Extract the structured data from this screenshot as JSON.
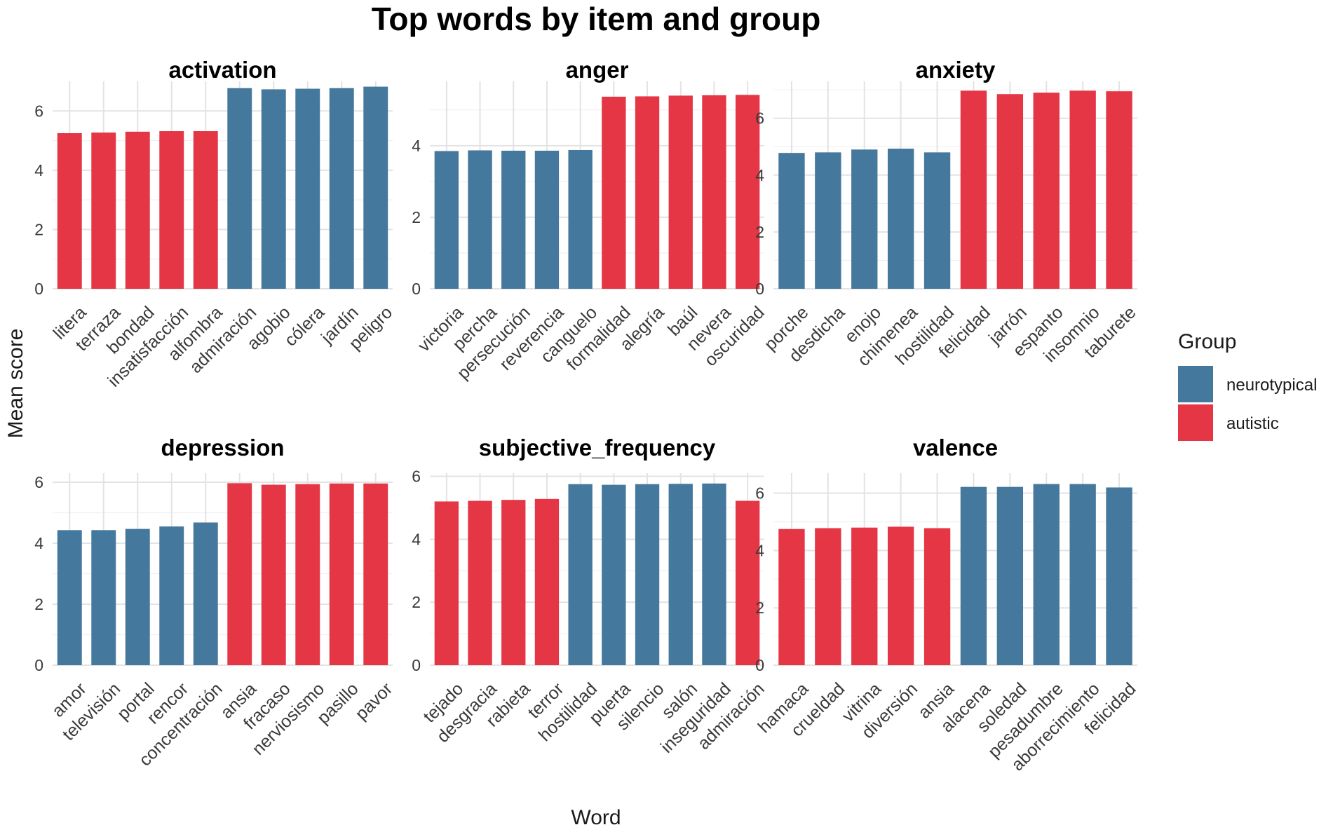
{
  "title": "Top words by item and group",
  "xlabel": "Word",
  "ylabel": "Mean score",
  "legend": {
    "title": "Group",
    "placement": "right",
    "entries": [
      {
        "label": "neurotypical",
        "color": "#44789D"
      },
      {
        "label": "autistic",
        "color": "#E43645"
      }
    ]
  },
  "colors": {
    "neurotypical": "#44789D",
    "autistic": "#E43645"
  },
  "chart_data": [
    {
      "type": "bar",
      "title": "activation",
      "ylim": [
        0,
        7
      ],
      "yticks": [
        0,
        2,
        4,
        6
      ],
      "categories": [
        "litera",
        "terraza",
        "bondad",
        "insatisfacción",
        "alfombra",
        "admiración",
        "agobio",
        "cólera",
        "jardín",
        "peligro"
      ],
      "values": [
        5.25,
        5.27,
        5.3,
        5.32,
        5.32,
        6.77,
        6.73,
        6.75,
        6.77,
        6.82
      ],
      "groups": [
        "autistic",
        "autistic",
        "autistic",
        "autistic",
        "autistic",
        "neurotypical",
        "neurotypical",
        "neurotypical",
        "neurotypical",
        "neurotypical"
      ],
      "grid": true
    },
    {
      "type": "bar",
      "title": "anger",
      "ylim": [
        0,
        5.8
      ],
      "yticks": [
        0,
        2,
        4
      ],
      "categories": [
        "victoria",
        "percha",
        "persecución",
        "reverencia",
        "canguelo",
        "formalidad",
        "alegría",
        "baúl",
        "nevera",
        "oscuridad"
      ],
      "values": [
        3.85,
        3.87,
        3.86,
        3.86,
        3.88,
        5.37,
        5.38,
        5.4,
        5.41,
        5.42
      ],
      "groups": [
        "neurotypical",
        "neurotypical",
        "neurotypical",
        "neurotypical",
        "neurotypical",
        "autistic",
        "autistic",
        "autistic",
        "autistic",
        "autistic"
      ],
      "grid": true
    },
    {
      "type": "bar",
      "title": "anxiety",
      "ylim": [
        0,
        7.3
      ],
      "yticks": [
        0,
        2,
        4,
        6
      ],
      "categories": [
        "porche",
        "desdicha",
        "enojo",
        "chimenea",
        "hostilidad",
        "felicidad",
        "jarrón",
        "espanto",
        "insomnio",
        "taburete"
      ],
      "values": [
        4.78,
        4.8,
        4.9,
        4.93,
        4.8,
        6.97,
        6.85,
        6.9,
        6.97,
        6.95
      ],
      "groups": [
        "neurotypical",
        "neurotypical",
        "neurotypical",
        "neurotypical",
        "neurotypical",
        "autistic",
        "autistic",
        "autistic",
        "autistic",
        "autistic"
      ],
      "grid": true
    },
    {
      "type": "bar",
      "title": "depression",
      "ylim": [
        0,
        6.3
      ],
      "yticks": [
        0,
        2,
        4,
        6
      ],
      "categories": [
        "amor",
        "televisión",
        "portal",
        "rencor",
        "concentración",
        "ansia",
        "fracaso",
        "nerviosismo",
        "pasillo",
        "pavor"
      ],
      "values": [
        4.43,
        4.43,
        4.47,
        4.55,
        4.68,
        5.97,
        5.92,
        5.94,
        5.96,
        5.96
      ],
      "groups": [
        "neurotypical",
        "neurotypical",
        "neurotypical",
        "neurotypical",
        "neurotypical",
        "autistic",
        "autistic",
        "autistic",
        "autistic",
        "autistic"
      ],
      "grid": true
    },
    {
      "type": "bar",
      "title": "subjective_frequency",
      "ylim": [
        0,
        6.1
      ],
      "yticks": [
        0,
        2,
        4,
        6
      ],
      "categories": [
        "tejado",
        "desgracia",
        "rabieta",
        "terror",
        "hostilidad",
        "puerta",
        "silencio",
        "salón",
        "inseguridad",
        "admiración"
      ],
      "values": [
        5.2,
        5.22,
        5.25,
        5.28,
        5.75,
        5.73,
        5.75,
        5.76,
        5.77,
        5.22
      ],
      "groups": [
        "autistic",
        "autistic",
        "autistic",
        "autistic",
        "neurotypical",
        "neurotypical",
        "neurotypical",
        "neurotypical",
        "neurotypical",
        "autistic"
      ],
      "grid": true
    },
    {
      "type": "bar",
      "title": "valence",
      "ylim": [
        0,
        6.7
      ],
      "yticks": [
        0,
        2,
        4,
        6
      ],
      "categories": [
        "hamaca",
        "crueldad",
        "vitrina",
        "diversión",
        "ansia",
        "alacena",
        "soledad",
        "pesadumbre",
        "aborrecimiento",
        "felicidad"
      ],
      "values": [
        4.75,
        4.78,
        4.8,
        4.83,
        4.78,
        6.22,
        6.22,
        6.32,
        6.32,
        6.2
      ],
      "groups": [
        "autistic",
        "autistic",
        "autistic",
        "autistic",
        "autistic",
        "neurotypical",
        "neurotypical",
        "neurotypical",
        "neurotypical",
        "neurotypical"
      ],
      "grid": true
    }
  ]
}
